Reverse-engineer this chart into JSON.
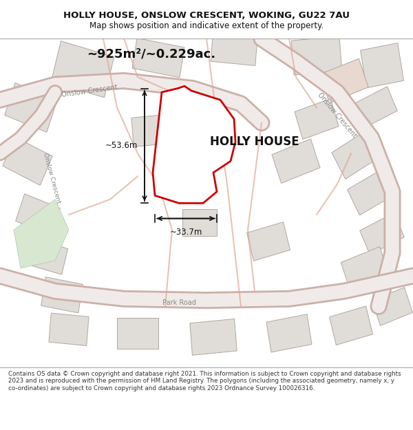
{
  "title_line1": "HOLLY HOUSE, ONSLOW CRESCENT, WOKING, GU22 7AU",
  "title_line2": "Map shows position and indicative extent of the property.",
  "area_text": "~925m²/~0.229ac.",
  "property_label": "HOLLY HOUSE",
  "dim_vertical": "~53.6m",
  "dim_horizontal": "~33.7m",
  "footer_text": "Contains OS data © Crown copyright and database right 2021. This information is subject to Crown copyright and database rights 2023 and is reproduced with the permission of HM Land Registry. The polygons (including the associated geometry, namely x, y co-ordinates) are subject to Crown copyright and database rights 2023 Ordnance Survey 100026316.",
  "bg_color": "#f5f0ee",
  "map_bg": "#f8f5f3",
  "road_color_main": "#e8c8c0",
  "road_color_outline": "#d0a090",
  "building_fill": "#e0dcd8",
  "building_outline": "#b0a8a0",
  "highlight_building": "#e8d8d0",
  "property_poly_color": "#cc0000",
  "property_fill": "none",
  "dim_line_color": "#111111",
  "text_color": "#111111",
  "street_label_color": "#888888"
}
